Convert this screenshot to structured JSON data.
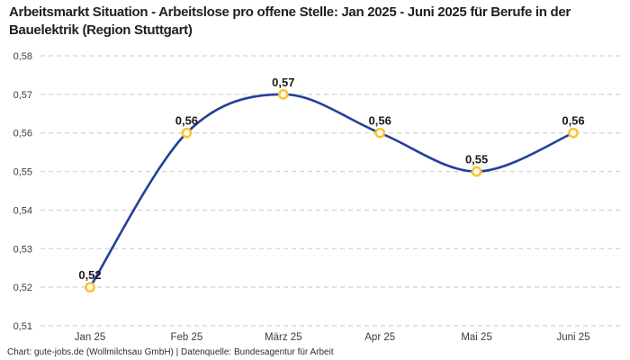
{
  "chart_data": {
    "type": "line",
    "title": "Arbeitsmarkt Situation - Arbeitslose pro offene Stelle: Jan 2025 - Juni 2025 für Berufe in der Bauelektrik (Region Stuttgart)",
    "categories": [
      "Jan 25",
      "Feb 25",
      "März 25",
      "Apr 25",
      "Mai 25",
      "Juni 25"
    ],
    "values": [
      0.52,
      0.56,
      0.57,
      0.56,
      0.55,
      0.56
    ],
    "value_labels": [
      "0,52",
      "0,56",
      "0,57",
      "0,56",
      "0,55",
      "0,56"
    ],
    "y_ticks": [
      "0,58",
      "0,57",
      "0,56",
      "0,55",
      "0,54",
      "0,53",
      "0,52",
      "0,51"
    ],
    "y_tick_values": [
      0.58,
      0.57,
      0.56,
      0.55,
      0.54,
      0.53,
      0.52,
      0.51
    ],
    "ylim": [
      0.51,
      0.58
    ],
    "xlabel": "",
    "ylabel": "",
    "legend": "none",
    "grid": "horizontal-dashed",
    "smooth": true,
    "colors": {
      "line": "#23409b",
      "marker_ring": "#fcc434",
      "marker_fill": "#ffffff",
      "grid": "#c9c9c9",
      "value_label": "#1a1a1a",
      "axis_text": "#3c3c3c",
      "background": "#ffffff"
    }
  },
  "footer": {
    "attribution": "Chart: gute-jobs.de (Wollmilchsau GmbH) | Datenquelle: Bundesagentur für Arbeit"
  }
}
